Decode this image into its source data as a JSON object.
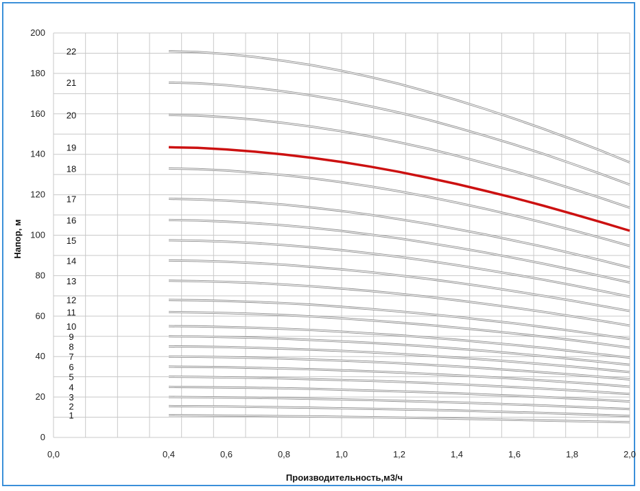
{
  "chart_data": {
    "type": "line",
    "title": "",
    "xlabel": "Производительность,м3/ч",
    "ylabel": "Напор, м",
    "xlim": [
      0.0,
      2.0
    ],
    "ylim": [
      0,
      200
    ],
    "x_ticks": [
      "0,0",
      "0,4",
      "0,6",
      "0,8",
      "1,0",
      "1,2",
      "1,4",
      "1,6",
      "1,8",
      "2,0"
    ],
    "y_ticks": [
      "0",
      "20",
      "40",
      "60",
      "80",
      "100",
      "120",
      "140",
      "160",
      "180",
      "200"
    ],
    "grid": true,
    "highlight_color": "#cc1111",
    "curve_color": "#8a8a8a",
    "x": [
      0.4,
      0.5,
      0.6,
      0.7,
      0.8,
      0.9,
      1.0,
      1.1,
      1.2,
      1.3,
      1.4,
      1.5,
      1.6,
      1.7,
      1.8,
      1.9,
      2.0
    ],
    "series": [
      {
        "label": "1",
        "values": [
          11,
          10.9,
          10.8,
          10.7,
          10.5,
          10.4,
          10.2,
          10,
          9.8,
          9.6,
          9.3,
          9,
          8.7,
          8.4,
          8.1,
          7.8,
          7.5
        ],
        "highlight": false
      },
      {
        "label": "2",
        "values": [
          15.5,
          15.4,
          15.3,
          15.1,
          14.9,
          14.7,
          14.4,
          14.2,
          13.9,
          13.6,
          13.3,
          12.9,
          12.5,
          12.1,
          11.6,
          11.1,
          10.6
        ],
        "highlight": false
      },
      {
        "label": "3",
        "values": [
          20,
          19.9,
          19.8,
          19.6,
          19.4,
          19.1,
          18.8,
          18.5,
          18.1,
          17.7,
          17.3,
          16.8,
          16.3,
          15.8,
          15.2,
          14.6,
          14
        ],
        "highlight": false
      },
      {
        "label": "4",
        "values": [
          25,
          24.9,
          24.7,
          24.5,
          24.3,
          24,
          23.6,
          23.2,
          22.8,
          22.3,
          21.8,
          21.2,
          20.6,
          20,
          19.3,
          18.6,
          17.8
        ],
        "highlight": false
      },
      {
        "label": "5",
        "values": [
          30,
          29.9,
          29.7,
          29.5,
          29.2,
          28.8,
          28.4,
          28,
          27.5,
          26.9,
          26.3,
          25.6,
          24.9,
          24.1,
          23.3,
          22.4,
          21.5
        ],
        "highlight": false
      },
      {
        "label": "6",
        "values": [
          35,
          34.9,
          34.7,
          34.4,
          34.1,
          33.7,
          33.2,
          32.7,
          32.1,
          31.4,
          30.7,
          29.9,
          29.1,
          28.2,
          27.2,
          26.2,
          25.1
        ],
        "highlight": false
      },
      {
        "label": "7",
        "values": [
          40,
          39.9,
          39.7,
          39.4,
          39,
          38.5,
          38,
          37.4,
          36.7,
          35.9,
          35.1,
          34.2,
          33.2,
          32.2,
          31.1,
          29.9,
          28.7
        ],
        "highlight": false
      },
      {
        "label": "8",
        "values": [
          45,
          44.9,
          44.7,
          44.3,
          43.9,
          43.4,
          42.8,
          42.1,
          41.3,
          40.4,
          39.5,
          38.5,
          37.4,
          36.2,
          35,
          33.7,
          32.3
        ],
        "highlight": false
      },
      {
        "label": "9",
        "values": [
          50,
          49.9,
          49.6,
          49.3,
          48.8,
          48.2,
          47.5,
          46.8,
          45.9,
          45,
          43.9,
          42.8,
          41.5,
          40.2,
          38.8,
          37.4,
          35.9
        ],
        "highlight": false
      },
      {
        "label": "10",
        "values": [
          55,
          54.9,
          54.6,
          54.2,
          53.7,
          53.1,
          52.3,
          51.4,
          50.5,
          49.4,
          48.3,
          47,
          45.7,
          44.3,
          42.7,
          41.1,
          39.5
        ],
        "highlight": false
      },
      {
        "label": "11",
        "values": [
          62,
          61.8,
          61.5,
          61.1,
          60.5,
          59.8,
          58.9,
          57.9,
          56.8,
          55.6,
          54.3,
          52.9,
          51.4,
          49.8,
          48.1,
          46.3,
          44.4
        ],
        "highlight": false
      },
      {
        "label": "12",
        "values": [
          68,
          67.8,
          67.5,
          67,
          66.4,
          65.6,
          64.6,
          63.5,
          62.3,
          61,
          59.6,
          58,
          56.4,
          54.6,
          52.7,
          50.7,
          48.7
        ],
        "highlight": false
      },
      {
        "label": "13",
        "values": [
          77.5,
          77.3,
          76.9,
          76.4,
          75.6,
          74.7,
          73.6,
          72.4,
          71,
          69.5,
          67.8,
          66,
          64.1,
          62.1,
          59.9,
          57.7,
          55.3
        ],
        "highlight": false
      },
      {
        "label": "14",
        "values": [
          87.5,
          87.3,
          86.9,
          86.2,
          85.4,
          84.3,
          83.1,
          81.7,
          80.1,
          78.4,
          76.5,
          74.5,
          72.3,
          70,
          67.6,
          65.1,
          62.5
        ],
        "highlight": false
      },
      {
        "label": "15",
        "values": [
          97.5,
          97.3,
          96.8,
          96.1,
          95.1,
          94,
          92.6,
          91,
          89.3,
          87.3,
          85.2,
          82.9,
          80.5,
          78,
          75.3,
          72.5,
          69.6
        ],
        "highlight": false
      },
      {
        "label": "16",
        "values": [
          107.5,
          107.3,
          106.7,
          105.9,
          104.9,
          103.6,
          102.1,
          100.3,
          98.4,
          96.2,
          93.9,
          91.4,
          88.7,
          85.9,
          82.9,
          79.8,
          76.6
        ],
        "highlight": false
      },
      {
        "label": "17",
        "values": [
          118,
          117.7,
          117.1,
          116.2,
          115.1,
          113.7,
          112,
          110.1,
          107.9,
          105.6,
          103,
          100.3,
          97.3,
          94.3,
          91,
          87.6,
          84
        ],
        "highlight": false
      },
      {
        "label": "18",
        "values": [
          133,
          132.7,
          132,
          130.9,
          129.7,
          128.1,
          126.2,
          124.1,
          121.7,
          119,
          116.1,
          113,
          109.7,
          106.2,
          102.5,
          98.7,
          94.7
        ],
        "highlight": false
      },
      {
        "label": "19",
        "values": [
          143.5,
          143.2,
          142.4,
          141.3,
          139.9,
          138.2,
          136.2,
          133.9,
          131.3,
          128.4,
          125.3,
          121.9,
          118.4,
          114.6,
          110.6,
          106.5,
          102.2
        ],
        "highlight": true
      },
      {
        "label": "20",
        "values": [
          159.5,
          159.2,
          158.3,
          157.1,
          155.5,
          153.6,
          151.4,
          148.8,
          145.9,
          142.8,
          139.3,
          135.5,
          131.6,
          127.4,
          123,
          118.4,
          113.6
        ],
        "highlight": false
      },
      {
        "label": "21",
        "values": [
          175.5,
          175.1,
          174.2,
          172.8,
          171.1,
          169,
          166.6,
          163.7,
          160.6,
          157.1,
          153.2,
          149.1,
          144.8,
          140.2,
          135.3,
          130.3,
          125
        ],
        "highlight": false
      },
      {
        "label": "22",
        "values": [
          191,
          190.6,
          189.6,
          188.1,
          186.2,
          184,
          181.3,
          178.2,
          174.8,
          170.9,
          166.8,
          162.3,
          157.6,
          152.6,
          147.3,
          141.8,
          136
        ],
        "highlight": false
      }
    ]
  }
}
